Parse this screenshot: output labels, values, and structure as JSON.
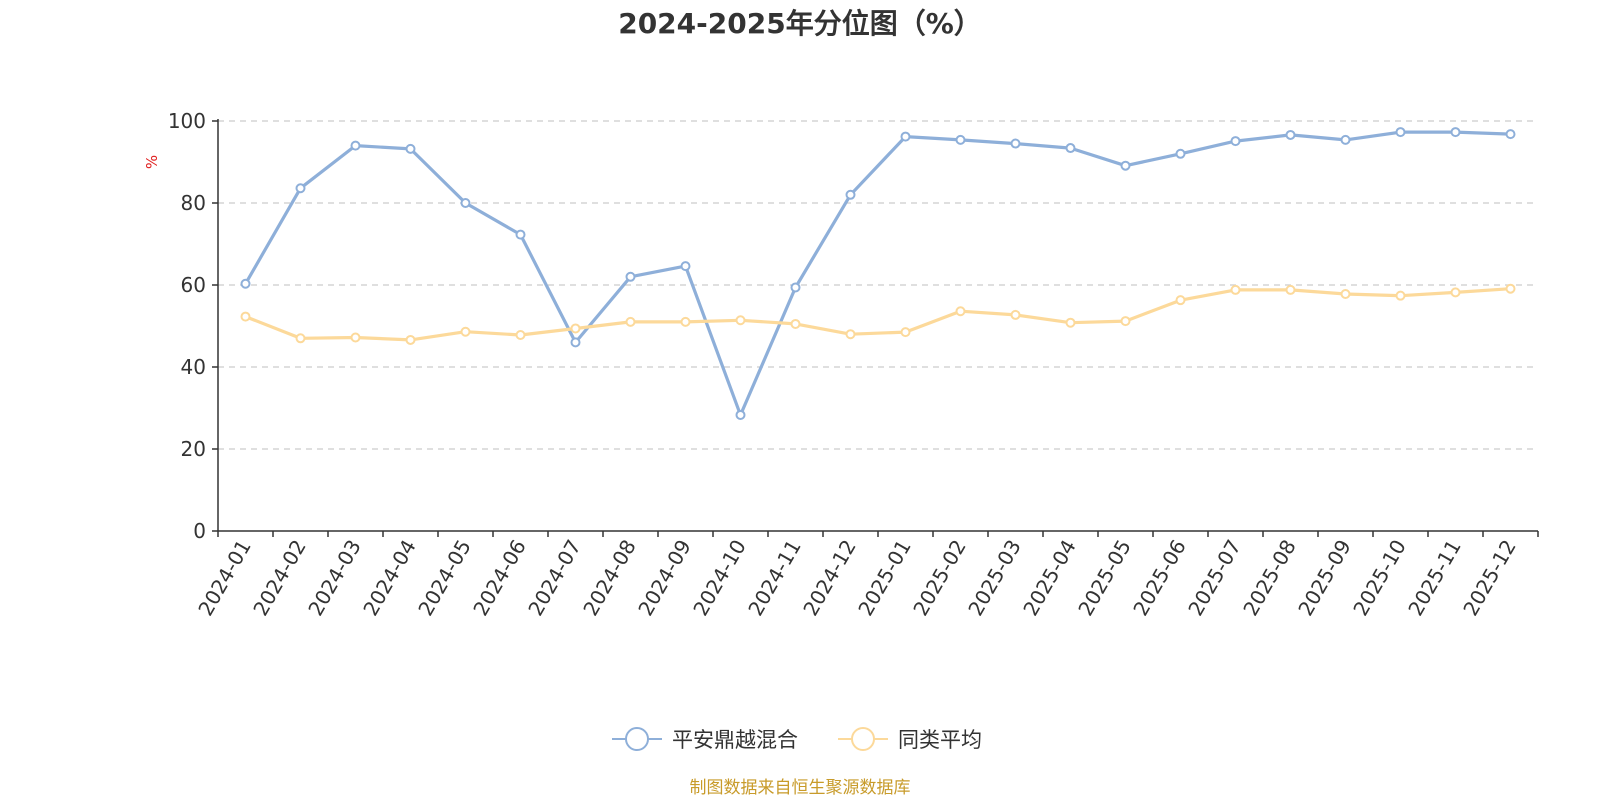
{
  "chart_data": {
    "type": "line",
    "title": "2024-2025年分位图（%）",
    "ylabel": "%",
    "ylim": [
      0,
      100
    ],
    "yticks": [
      0,
      20,
      40,
      60,
      80,
      100
    ],
    "grid": true,
    "legend_position": "bottom-center",
    "categories": [
      "2024-01",
      "2024-02",
      "2024-03",
      "2024-04",
      "2024-05",
      "2024-06",
      "2024-07",
      "2024-08",
      "2024-09",
      "2024-10",
      "2024-11",
      "2024-12",
      "2025-01",
      "2025-02",
      "2025-03",
      "2025-04",
      "2025-05",
      "2025-06",
      "2025-07",
      "2025-08",
      "2025-09",
      "2025-10",
      "2025-11",
      "2025-12"
    ],
    "series": [
      {
        "name": "平安鼎越混合",
        "color": "#8eafd9",
        "values": [
          60.3,
          83.6,
          94.0,
          93.2,
          80.0,
          72.3,
          46.0,
          62.0,
          64.6,
          28.3,
          59.4,
          82.0,
          96.2,
          95.4,
          94.5,
          93.4,
          89.1,
          92.0,
          95.1,
          96.6,
          95.4,
          97.3,
          97.3,
          96.8
        ]
      },
      {
        "name": "同类平均",
        "color": "#fcd99a",
        "values": [
          52.3,
          47.0,
          47.2,
          46.6,
          48.6,
          47.8,
          49.4,
          51.0,
          51.0,
          51.4,
          50.5,
          48.0,
          48.5,
          53.6,
          52.7,
          50.8,
          51.2,
          56.3,
          58.8,
          58.8,
          57.8,
          57.4,
          58.2,
          59.1
        ]
      }
    ]
  },
  "colors": {
    "unit_label": "#e02020",
    "source_text": "#c89b2a",
    "grid": "#cccccc",
    "axis": "#333333"
  },
  "source": "制图数据来自恒生聚源数据库"
}
